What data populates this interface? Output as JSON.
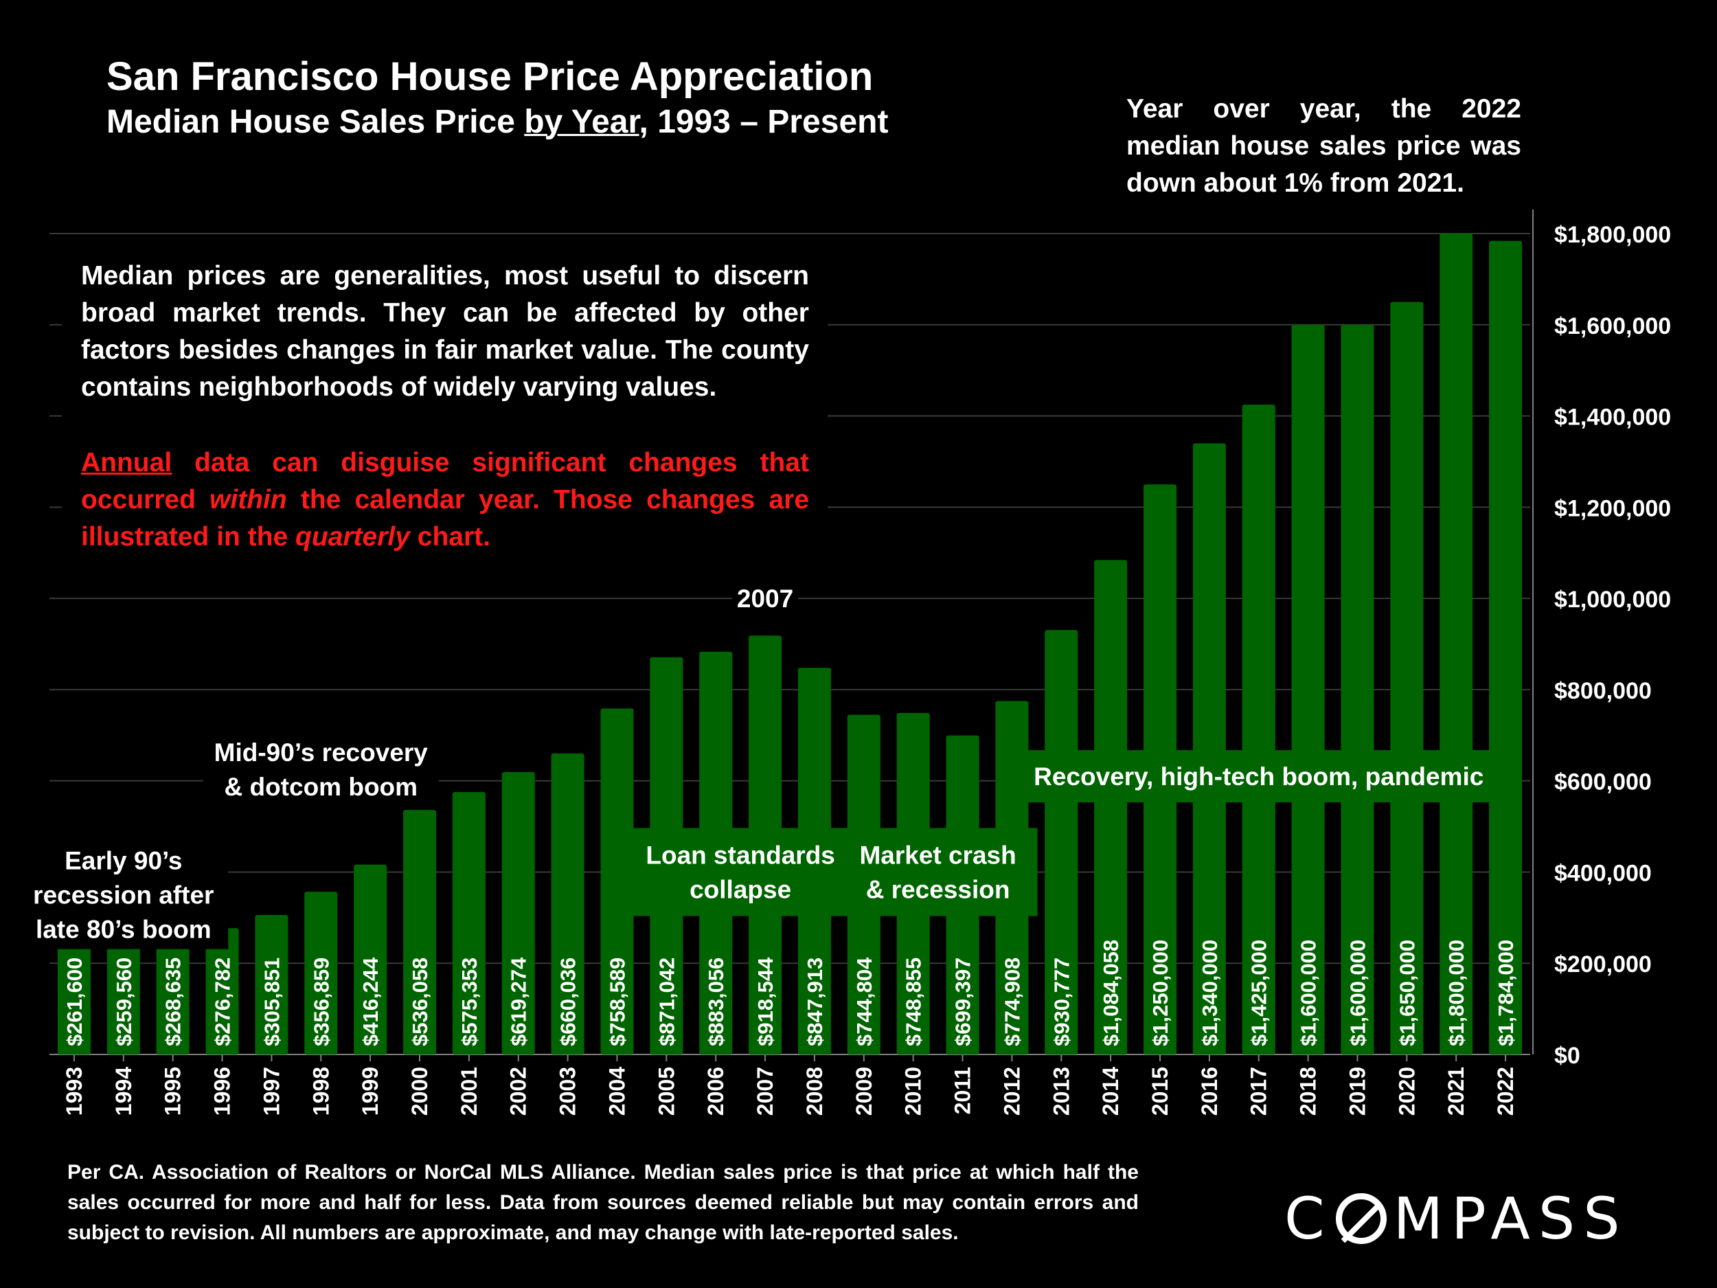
{
  "header": {
    "title": "San Francisco House Price Appreciation",
    "subtitle_pre": "Median House Sales Price ",
    "subtitle_underlined": "by Year",
    "subtitle_post": ", 1993 – Present"
  },
  "yoy_note": {
    "line_a": "Year over year, the 2022 median house sales price was",
    "line_b": "down about 1% from 2021."
  },
  "info_box": {
    "white_text": "Median prices are generalities, most useful to discern broad market trends. They can be affected by other factors besides changes in fair market value. The county contains neighborhoods of widely varying values.",
    "red_underlined": "Annual",
    "red_1": " data can disguise significant changes that occurred ",
    "red_italic_1": "within",
    "red_2": " the calendar year. Those changes are illustrated in the ",
    "red_italic_2": "quarterly",
    "red_3": " chart."
  },
  "chart_data": {
    "type": "bar",
    "categories": [
      "1993",
      "1994",
      "1995",
      "1996",
      "1997",
      "1998",
      "1999",
      "2000",
      "2001",
      "2002",
      "2003",
      "2004",
      "2005",
      "2006",
      "2007",
      "2008",
      "2009",
      "2010",
      "2011",
      "2012",
      "2013",
      "2014",
      "2015",
      "2016",
      "2017",
      "2018",
      "2019",
      "2020",
      "2021",
      "2022"
    ],
    "values": [
      261600,
      259560,
      268635,
      276782,
      305851,
      356859,
      416244,
      536058,
      575353,
      619274,
      660036,
      758589,
      871042,
      883056,
      918544,
      847913,
      744804,
      748855,
      699397,
      774908,
      930777,
      1084058,
      1250000,
      1340000,
      1425000,
      1600000,
      1600000,
      1650000,
      1800000,
      1784000
    ],
    "data_labels": [
      "$261,600",
      "$259,560",
      "$268,635",
      "$276,782",
      "$305,851",
      "$356,859",
      "$416,244",
      "$536,058",
      "$575,353",
      "$619,274",
      "$660,036",
      "$758,589",
      "$871,042",
      "$883,056",
      "$918,544",
      "$847,913",
      "$744,804",
      "$748,855",
      "$699,397",
      "$774,908",
      "$930,777",
      "$1,084,058",
      "$1,250,000",
      "$1,340,000",
      "$1,425,000",
      "$1,600,000",
      "$1,600,000",
      "$1,650,000",
      "$1,800,000",
      "$1,784,000"
    ],
    "ylim": [
      0,
      1800000
    ],
    "yticks": [
      0,
      200000,
      400000,
      600000,
      800000,
      1000000,
      1200000,
      1400000,
      1600000,
      1800000
    ],
    "ytick_labels": [
      "$0",
      "$200,000",
      "$400,000",
      "$600,000",
      "$800,000",
      "$1,000,000",
      "$1,200,000",
      "$1,400,000",
      "$1,600,000",
      "$1,800,000"
    ],
    "y_axis_side": "right",
    "grid": true,
    "colors": {
      "bar": "#006400",
      "grid": "#3a3a3a",
      "axis": "#808080",
      "text": "#ffffff"
    },
    "annotations": [
      {
        "lines": [
          "Early 90’s",
          "recession after",
          "late 80’s boom"
        ],
        "near_year": "1994",
        "value": 350000,
        "box": false
      },
      {
        "lines": [
          "Mid-90’s recovery",
          "& dotcom boom"
        ],
        "near_year": "1998",
        "value": 625000,
        "box": false
      },
      {
        "lines": [
          "2007"
        ],
        "near_year": "2007",
        "value": 1000000,
        "box": false
      },
      {
        "lines": [
          "Loan standards",
          "collapse"
        ],
        "near_year": "2006",
        "value": 400000,
        "box": true
      },
      {
        "lines": [
          "Market crash",
          "& recession"
        ],
        "near_year": "2010",
        "value": 400000,
        "box": true
      },
      {
        "lines": [
          "Recovery, high-tech boom, pandemic"
        ],
        "near_year": "2017",
        "value": 610000,
        "box": true
      }
    ]
  },
  "footnote": "Per CA. Association of Realtors or NorCal MLS Alliance. Median sales price is that price at which half the sales occurred for more and half for less. Data from sources deemed reliable but may contain errors and subject to revision. All numbers are approximate, and may change with late-reported sales.",
  "logo": {
    "pre": "C",
    "post": "MPASS"
  }
}
